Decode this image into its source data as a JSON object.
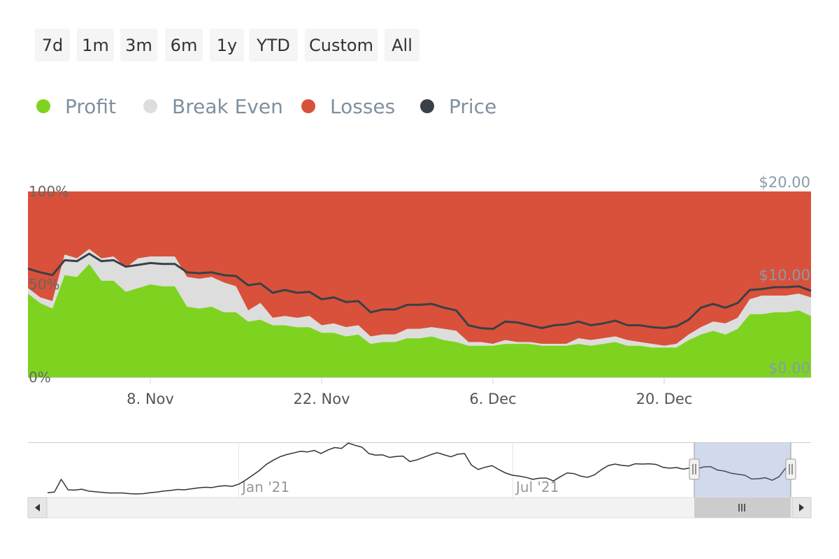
{
  "range_selector": {
    "buttons": [
      "7d",
      "1m",
      "3m",
      "6m",
      "1y",
      "YTD",
      "Custom",
      "All"
    ]
  },
  "legend": {
    "items": [
      {
        "label": "Profit",
        "color": "#7ed321"
      },
      {
        "label": "Break Even",
        "color": "#dddddd"
      },
      {
        "label": "Losses",
        "color": "#d9513a"
      },
      {
        "label": "Price",
        "color": "#3a4047"
      }
    ]
  },
  "chart_data": {
    "type": "area",
    "stacking": "percent",
    "y_left_ticks": [
      "100%",
      "50%",
      "0%"
    ],
    "y_right_ticks": [
      "$20.00",
      "$10.00",
      "$0.00"
    ],
    "y_right_range": [
      0,
      20
    ],
    "x_ticks": [
      {
        "label": "8. Nov",
        "day": 10
      },
      {
        "label": "22. Nov",
        "day": 24
      },
      {
        "label": "6. Dec",
        "day": 38
      },
      {
        "label": "20. Dec",
        "day": 52
      }
    ],
    "series": [
      {
        "name": "Profit",
        "color": "#7ed321",
        "values": [
          45,
          40,
          37,
          55,
          54,
          61,
          52,
          52,
          46,
          48,
          50,
          49,
          49,
          38,
          37,
          38,
          35,
          35,
          30,
          31,
          28,
          28,
          27,
          27,
          24,
          24,
          22,
          23,
          18,
          19,
          19,
          21,
          21,
          22,
          20,
          19,
          17,
          17,
          17,
          18,
          18,
          18,
          17,
          17,
          17,
          18,
          17,
          18,
          19,
          17,
          17,
          16,
          16,
          16,
          20,
          23,
          25,
          23,
          26,
          34,
          34,
          35,
          35,
          36,
          33
        ]
      },
      {
        "name": "Break Even",
        "color": "#dddddd",
        "values": [
          3,
          3,
          4,
          11,
          10,
          8,
          12,
          13,
          13,
          16,
          15,
          16,
          16,
          16,
          16,
          16,
          16,
          14,
          6,
          9,
          4,
          5,
          5,
          6,
          4,
          5,
          5,
          5,
          4,
          4,
          4,
          5,
          5,
          5,
          6,
          6,
          2,
          2,
          1,
          2,
          1,
          1,
          1,
          1,
          1,
          3,
          3,
          3,
          3,
          3,
          2,
          2,
          1,
          2,
          3,
          4,
          5,
          6,
          6,
          8,
          10,
          9,
          9,
          9,
          10
        ]
      },
      {
        "name": "Losses",
        "color": "#d9513a",
        "values": [
          52,
          57,
          59,
          34,
          36,
          31,
          36,
          35,
          41,
          36,
          35,
          35,
          35,
          46,
          47,
          46,
          49,
          51,
          64,
          60,
          68,
          67,
          68,
          67,
          72,
          71,
          73,
          72,
          78,
          77,
          77,
          74,
          74,
          73,
          74,
          75,
          81,
          81,
          82,
          80,
          81,
          81,
          82,
          82,
          82,
          79,
          80,
          79,
          78,
          80,
          81,
          82,
          83,
          82,
          77,
          73,
          70,
          71,
          68,
          58,
          56,
          56,
          56,
          55,
          57
        ]
      },
      {
        "name": "Price",
        "values": [
          11.7,
          11.3,
          11.0,
          12.6,
          12.5,
          13.3,
          12.5,
          12.6,
          11.9,
          12.1,
          12.3,
          12.2,
          12.2,
          11.3,
          11.2,
          11.3,
          11.0,
          10.9,
          9.9,
          10.1,
          9.1,
          9.4,
          9.1,
          9.2,
          8.4,
          8.6,
          8.1,
          8.2,
          7.0,
          7.3,
          7.3,
          7.8,
          7.8,
          7.9,
          7.5,
          7.2,
          5.6,
          5.3,
          5.2,
          6.0,
          5.9,
          5.6,
          5.3,
          5.6,
          5.7,
          6.0,
          5.6,
          5.8,
          6.1,
          5.6,
          5.6,
          5.4,
          5.3,
          5.5,
          6.2,
          7.5,
          7.9,
          7.5,
          8.0,
          9.4,
          9.5,
          9.7,
          9.7,
          9.8,
          9.3
        ]
      }
    ]
  },
  "navigator": {
    "x_labels": [
      "Jan '21",
      "Jul '21"
    ],
    "price_values": [
      1.3,
      1.5,
      5.5,
      2.2,
      2.1,
      2.4,
      1.8,
      1.6,
      1.4,
      1.2,
      1.2,
      1.2,
      1.0,
      0.9,
      1.0,
      1.3,
      1.5,
      1.8,
      2.0,
      2.3,
      2.2,
      2.5,
      2.8,
      3.0,
      2.9,
      3.3,
      3.5,
      3.3,
      4.0,
      5.3,
      6.8,
      8.3,
      10.2,
      11.5,
      12.6,
      13.3,
      13.8,
      14.3,
      14.1,
      14.6,
      13.6,
      14.7,
      15.5,
      15.2,
      16.9,
      16.2,
      15.6,
      13.6,
      13.1,
      13.2,
      12.4,
      12.7,
      12.8,
      11.1,
      11.6,
      12.4,
      13.2,
      13.9,
      13.2,
      12.6,
      13.4,
      13.6,
      10.0,
      8.6,
      9.3,
      9.8,
      8.6,
      7.5,
      6.8,
      6.5,
      6.1,
      5.5,
      5.9,
      5.9,
      5.0,
      6.3,
      7.5,
      7.3,
      6.5,
      6.1,
      6.9,
      8.5,
      9.8,
      10.3,
      9.9,
      9.7,
      10.4,
      10.3,
      10.4,
      10.2,
      9.3,
      9.0,
      9.2,
      8.7,
      9.1,
      8.8,
      9.4,
      9.5,
      8.4,
      8.1,
      7.4,
      7.1,
      6.8,
      5.6,
      5.7,
      6.0,
      5.2,
      6.3,
      9.1
    ],
    "range": [
      0,
      20
    ]
  }
}
